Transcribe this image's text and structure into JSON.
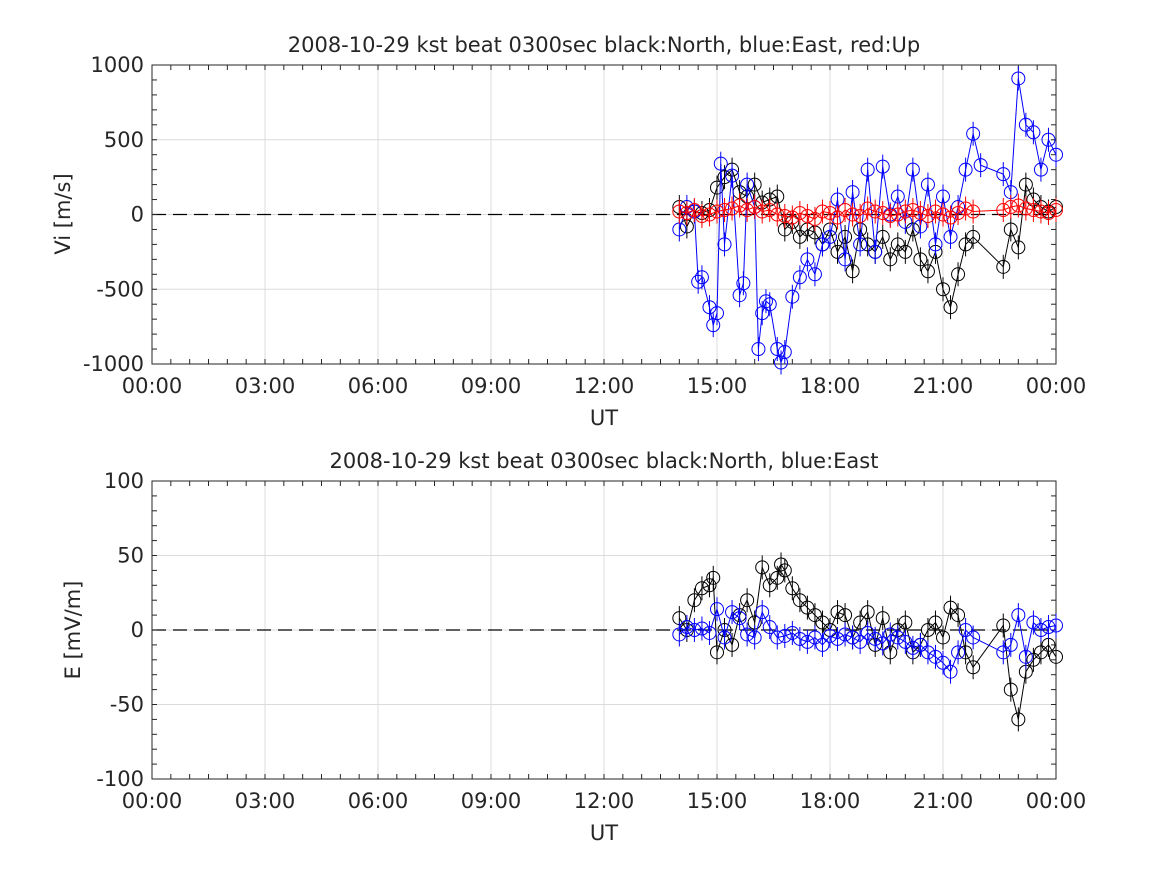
{
  "chart_data": [
    {
      "type": "scatter",
      "title": "2008-10-29 kst beat 0300sec black:North, blue:East, red:Up",
      "xlabel": "UT",
      "ylabel": "Vi [m/s]",
      "xlim": [
        0,
        24
      ],
      "ylim": [
        -1000,
        1000
      ],
      "xticks": [
        0,
        3,
        6,
        9,
        12,
        15,
        18,
        21,
        24
      ],
      "xtick_labels": [
        "00:00",
        "03:00",
        "06:00",
        "09:00",
        "12:00",
        "15:00",
        "18:00",
        "21:00",
        "00:00"
      ],
      "yticks": [
        -1000,
        -500,
        0,
        500,
        1000
      ],
      "ytick_labels": [
        "-1000",
        "-500",
        "0",
        "500",
        "1000"
      ],
      "grid": true,
      "zero_line": "dashed",
      "series": [
        {
          "name": "North",
          "color": "#000000",
          "x": [
            14.0,
            14.2,
            14.4,
            14.6,
            14.8,
            15.0,
            15.2,
            15.4,
            15.6,
            15.8,
            16.0,
            16.2,
            16.4,
            16.6,
            16.8,
            17.0,
            17.2,
            17.4,
            17.6,
            17.8,
            18.0,
            18.2,
            18.4,
            18.6,
            18.8,
            19.0,
            19.2,
            19.4,
            19.6,
            19.8,
            20.0,
            20.2,
            20.4,
            20.6,
            20.8,
            21.0,
            21.2,
            21.4,
            21.6,
            21.8,
            22.6,
            22.8,
            23.0,
            23.2,
            23.4,
            23.6,
            23.8,
            24.0
          ],
          "y": [
            50,
            -80,
            20,
            10,
            30,
            180,
            250,
            300,
            150,
            120,
            200,
            80,
            100,
            120,
            -100,
            -50,
            -150,
            -100,
            -120,
            -200,
            -100,
            -250,
            -150,
            -380,
            -100,
            -200,
            -250,
            -150,
            -300,
            -200,
            -250,
            -100,
            -300,
            -380,
            -250,
            -500,
            -620,
            -400,
            -200,
            -150,
            -350,
            -100,
            -220,
            200,
            100,
            50,
            20,
            50
          ]
        },
        {
          "name": "East",
          "color": "#0000ff",
          "x": [
            14.0,
            14.2,
            14.4,
            14.5,
            14.6,
            14.8,
            14.9,
            15.0,
            15.1,
            15.2,
            15.4,
            15.6,
            15.7,
            15.8,
            16.0,
            16.1,
            16.2,
            16.3,
            16.4,
            16.6,
            16.7,
            16.8,
            17.0,
            17.2,
            17.4,
            17.6,
            17.8,
            18.0,
            18.2,
            18.4,
            18.6,
            18.8,
            19.0,
            19.2,
            19.4,
            19.6,
            19.8,
            20.0,
            20.2,
            20.4,
            20.6,
            20.8,
            21.0,
            21.2,
            21.4,
            21.6,
            21.8,
            22.0,
            22.6,
            22.8,
            23.0,
            23.2,
            23.4,
            23.6,
            23.8,
            24.0
          ],
          "y": [
            -100,
            50,
            20,
            -450,
            -420,
            -620,
            -740,
            -660,
            340,
            -200,
            260,
            -540,
            -460,
            200,
            50,
            -900,
            -660,
            -580,
            -600,
            -900,
            -990,
            -920,
            -550,
            -420,
            -300,
            -400,
            -200,
            -150,
            100,
            -300,
            150,
            -200,
            300,
            -250,
            320,
            0,
            120,
            -50,
            300,
            -80,
            200,
            -200,
            120,
            -150,
            50,
            300,
            540,
            330,
            270,
            150,
            910,
            600,
            550,
            300,
            500,
            400
          ]
        },
        {
          "name": "Up",
          "color": "#ff0000",
          "x": [
            14.0,
            14.2,
            14.4,
            14.6,
            14.8,
            15.0,
            15.2,
            15.4,
            15.6,
            15.8,
            16.0,
            16.2,
            16.4,
            16.6,
            16.8,
            17.0,
            17.2,
            17.4,
            17.6,
            17.8,
            18.0,
            18.2,
            18.4,
            18.6,
            18.8,
            19.0,
            19.2,
            19.4,
            19.6,
            19.8,
            20.0,
            20.2,
            20.4,
            20.6,
            20.8,
            21.0,
            21.2,
            21.4,
            21.6,
            21.8,
            22.6,
            22.8,
            23.0,
            23.2,
            23.4,
            23.6,
            23.8,
            24.0
          ],
          "y": [
            20,
            10,
            30,
            -10,
            0,
            20,
            30,
            40,
            60,
            30,
            50,
            20,
            30,
            0,
            -10,
            -20,
            10,
            -10,
            -30,
            20,
            10,
            -20,
            30,
            0,
            -10,
            40,
            20,
            10,
            -10,
            0,
            20,
            30,
            10,
            -10,
            20,
            0,
            -20,
            10,
            40,
            20,
            30,
            50,
            60,
            40,
            30,
            20,
            10,
            30
          ]
        }
      ]
    },
    {
      "type": "scatter",
      "title": "2008-10-29 kst beat 0300sec black:North, blue:East",
      "xlabel": "UT",
      "ylabel": "E [mV/m]",
      "xlim": [
        0,
        24
      ],
      "ylim": [
        -100,
        100
      ],
      "xticks": [
        0,
        3,
        6,
        9,
        12,
        15,
        18,
        21,
        24
      ],
      "xtick_labels": [
        "00:00",
        "03:00",
        "06:00",
        "09:00",
        "12:00",
        "15:00",
        "18:00",
        "21:00",
        "00:00"
      ],
      "yticks": [
        -100,
        -50,
        0,
        50,
        100
      ],
      "ytick_labels": [
        "-100",
        "-50",
        "0",
        "50",
        "100"
      ],
      "grid": true,
      "zero_line": "dashed",
      "series": [
        {
          "name": "North",
          "color": "#000000",
          "x": [
            14.0,
            14.2,
            14.4,
            14.6,
            14.8,
            14.9,
            15.0,
            15.2,
            15.4,
            15.6,
            15.8,
            16.0,
            16.2,
            16.4,
            16.6,
            16.7,
            16.8,
            17.0,
            17.2,
            17.4,
            17.6,
            17.8,
            18.0,
            18.2,
            18.4,
            18.6,
            18.8,
            19.0,
            19.2,
            19.4,
            19.6,
            19.8,
            20.0,
            20.2,
            20.4,
            20.6,
            20.8,
            21.0,
            21.2,
            21.4,
            21.6,
            21.8,
            22.6,
            22.8,
            23.0,
            23.2,
            23.4,
            23.6,
            23.8,
            24.0
          ],
          "y": [
            8,
            0,
            20,
            28,
            30,
            35,
            -15,
            0,
            -10,
            10,
            20,
            5,
            42,
            30,
            35,
            44,
            40,
            28,
            20,
            15,
            10,
            5,
            0,
            12,
            10,
            -5,
            5,
            12,
            -10,
            8,
            -15,
            0,
            5,
            -15,
            -10,
            0,
            5,
            -5,
            15,
            10,
            -15,
            -25,
            3,
            -40,
            -60,
            -28,
            -20,
            -15,
            -10,
            -18
          ]
        },
        {
          "name": "East",
          "color": "#0000ff",
          "x": [
            14.0,
            14.2,
            14.4,
            14.6,
            14.8,
            15.0,
            15.2,
            15.4,
            15.6,
            15.8,
            16.0,
            16.2,
            16.4,
            16.6,
            16.8,
            17.0,
            17.2,
            17.4,
            17.6,
            17.8,
            18.0,
            18.2,
            18.4,
            18.6,
            18.8,
            19.0,
            19.2,
            19.4,
            19.6,
            19.8,
            20.0,
            20.2,
            20.4,
            20.6,
            20.8,
            21.0,
            21.2,
            21.4,
            21.6,
            21.8,
            22.6,
            22.8,
            23.0,
            23.2,
            23.4,
            23.6,
            23.8,
            24.0
          ],
          "y": [
            -3,
            2,
            0,
            1,
            -2,
            14,
            -5,
            12,
            8,
            -3,
            -5,
            12,
            2,
            -5,
            -4,
            -2,
            -6,
            -8,
            -5,
            -10,
            -4,
            -6,
            -3,
            -5,
            -8,
            -2,
            -6,
            -9,
            -3,
            -5,
            -8,
            -12,
            -10,
            -15,
            -18,
            -22,
            -28,
            -15,
            0,
            -5,
            -15,
            -10,
            10,
            -18,
            5,
            0,
            2,
            3
          ]
        }
      ]
    }
  ]
}
